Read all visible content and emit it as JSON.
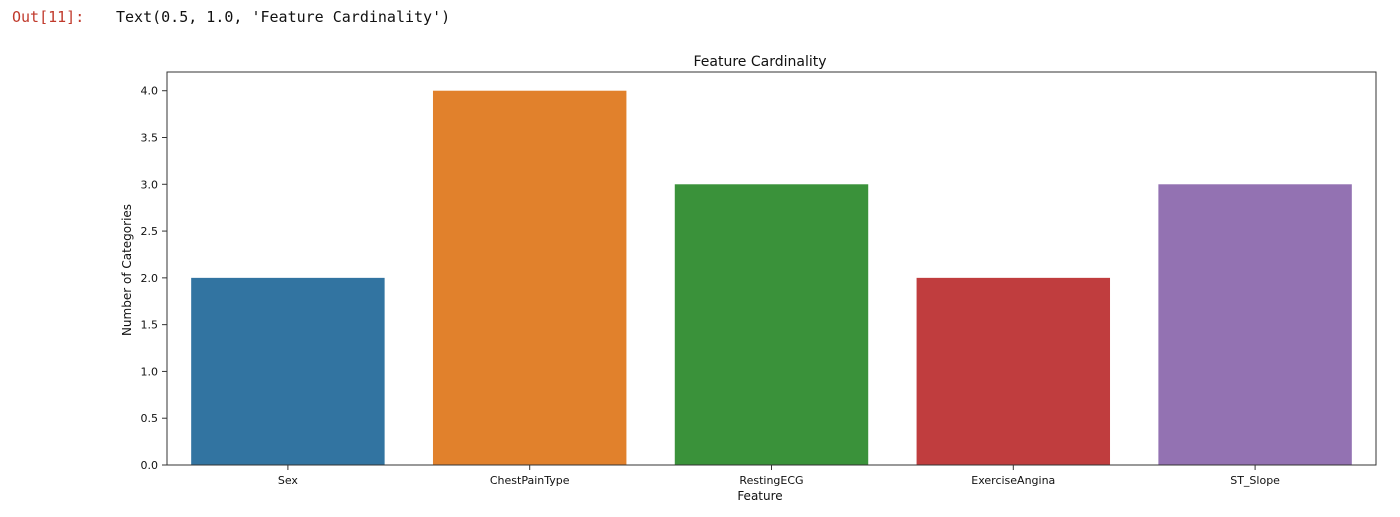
{
  "output": {
    "prompt": "Out[11]:",
    "text": "Text(0.5, 1.0, 'Feature Cardinality')"
  },
  "chart_data": {
    "type": "bar",
    "title": "Feature Cardinality",
    "xlabel": "Feature",
    "ylabel": "Number of Categories",
    "categories": [
      "Sex",
      "ChestPainType",
      "RestingECG",
      "ExerciseAngina",
      "ST_Slope"
    ],
    "values": [
      2,
      4,
      3,
      2,
      3
    ],
    "colors": [
      "#3274a1",
      "#e1812c",
      "#3a923a",
      "#c03d3e",
      "#9372b2"
    ],
    "ylim": [
      0,
      4.2
    ],
    "yticks": [
      "0.0",
      "0.5",
      "1.0",
      "1.5",
      "2.0",
      "2.5",
      "3.0",
      "3.5",
      "4.0"
    ],
    "grid": false
  }
}
